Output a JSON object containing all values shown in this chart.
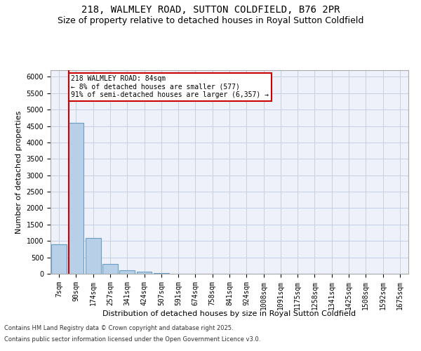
{
  "title1": "218, WALMLEY ROAD, SUTTON COLDFIELD, B76 2PR",
  "title2": "Size of property relative to detached houses in Royal Sutton Coldfield",
  "xlabel": "Distribution of detached houses by size in Royal Sutton Coldfield",
  "ylabel": "Number of detached properties",
  "annotation_line1": "218 WALMLEY ROAD: 84sqm",
  "annotation_line2": "← 8% of detached houses are smaller (577)",
  "annotation_line3": "91% of semi-detached houses are larger (6,357) →",
  "footer1": "Contains HM Land Registry data © Crown copyright and database right 2025.",
  "footer2": "Contains public sector information licensed under the Open Government Licence v3.0.",
  "bin_labels": [
    "7sqm",
    "90sqm",
    "174sqm",
    "257sqm",
    "341sqm",
    "424sqm",
    "507sqm",
    "591sqm",
    "674sqm",
    "758sqm",
    "841sqm",
    "924sqm",
    "1008sqm",
    "1091sqm",
    "1175sqm",
    "1258sqm",
    "1341sqm",
    "1425sqm",
    "1508sqm",
    "1592sqm",
    "1675sqm"
  ],
  "bar_values": [
    900,
    4600,
    1080,
    300,
    100,
    60,
    15,
    0,
    0,
    0,
    0,
    0,
    0,
    0,
    0,
    0,
    0,
    0,
    0,
    0,
    0
  ],
  "bar_color": "#b8cfe8",
  "bar_edge_color": "#6a9ec5",
  "red_line_color": "#cc0000",
  "annotation_box_edge": "#cc0000",
  "ylim": [
    0,
    6200
  ],
  "yticks": [
    0,
    500,
    1000,
    1500,
    2000,
    2500,
    3000,
    3500,
    4000,
    4500,
    5000,
    5500,
    6000
  ],
  "bg_color": "#eef1fa",
  "grid_color": "#c5cfe0",
  "title_fontsize": 10,
  "subtitle_fontsize": 9,
  "tick_fontsize": 7,
  "ylabel_fontsize": 8,
  "xlabel_fontsize": 8,
  "footer_fontsize": 6
}
